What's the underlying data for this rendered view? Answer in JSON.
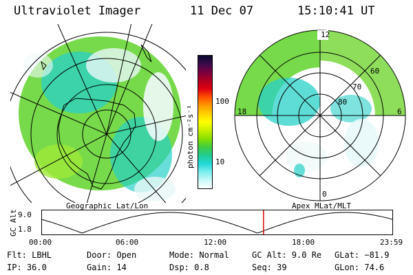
{
  "header": {
    "title": "Ultraviolet Imager",
    "date": "11 Dec 07",
    "time": "15:10:41 UT"
  },
  "left_map": {
    "caption": "Geographic Lat/Lon"
  },
  "right_map": {
    "caption": "Apex MLat/MLT",
    "mlt_labels": {
      "top": "12",
      "left": "18",
      "right": "6",
      "bottom": "0"
    },
    "lat_labels": [
      "60",
      "70",
      "80"
    ]
  },
  "colorbar": {
    "unit_label": "photon cm⁻²s⁻¹",
    "tick_labels": [
      "100",
      "10"
    ],
    "colors": [
      "#0a0a2e",
      "#3a0a4a",
      "#7a0040",
      "#b00020",
      "#e00010",
      "#ff5000",
      "#ff9a00",
      "#ffd000",
      "#ffff00",
      "#c8f000",
      "#88e000",
      "#40cc40",
      "#20cc90",
      "#20d8d8",
      "#7aeeee",
      "#c8f8f8",
      "#ffffff"
    ]
  },
  "timeline": {
    "axis_label": "GC Alt",
    "y_ticks": [
      "9.0",
      "1.8"
    ],
    "x_ticks": [
      "00:00",
      "06:00",
      "12:00",
      "18:00",
      "23:59"
    ],
    "current_fraction": 0.632
  },
  "info": {
    "filter": "Flt: LBHL",
    "ip": "IP: 36.0",
    "door": "Door: Open",
    "gain": "Gain: 14",
    "mode": "Mode: Normal",
    "dsp": "Dsp:    0.8",
    "gc_alt": "GC Alt: 9.0 Re",
    "seq": "Seq: 39",
    "glat": "GLat: −81.9",
    "glon": "GLon:  74.6"
  }
}
